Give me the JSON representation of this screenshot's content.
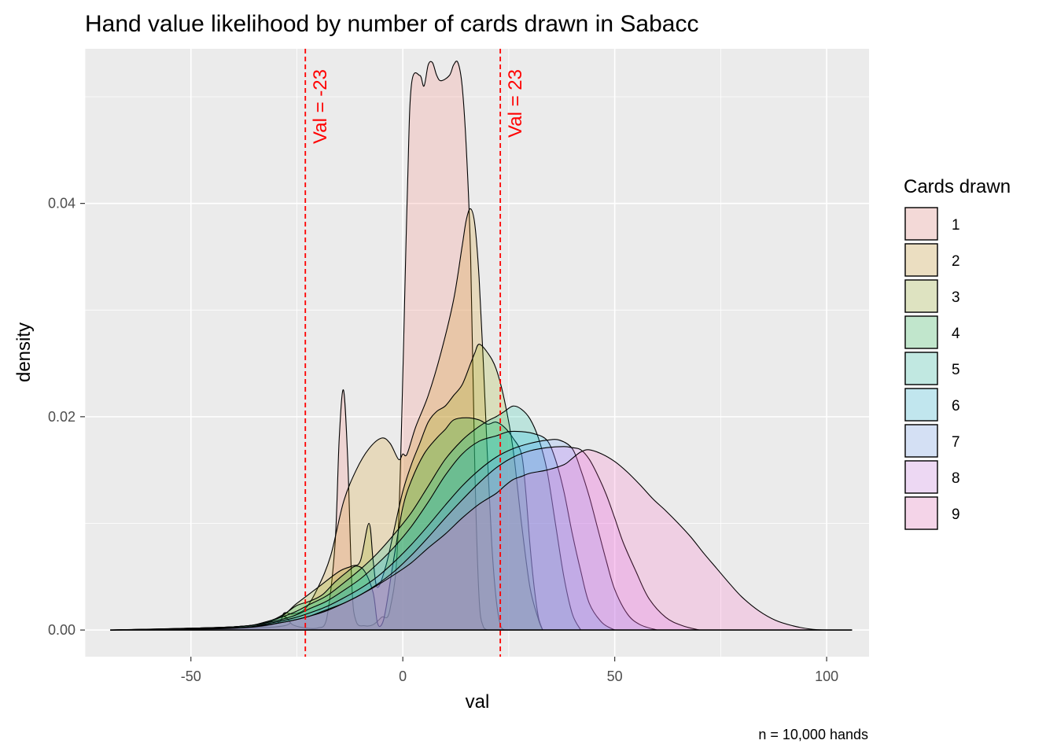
{
  "chart_data": {
    "type": "area",
    "title": "Hand value likelihood by number of cards drawn in Sabacc",
    "xlabel": "val",
    "ylabel": "density",
    "caption": "n = 10,000 hands",
    "xlim": [
      -75,
      110
    ],
    "ylim": [
      -0.0025,
      0.0545
    ],
    "x_ticks": [
      -50,
      0,
      50,
      100
    ],
    "x_tick_labels": [
      "-50",
      "0",
      "50",
      "100"
    ],
    "y_ticks": [
      0.0,
      0.02,
      0.04
    ],
    "y_tick_labels": [
      "0.00",
      "0.02",
      "0.04"
    ],
    "grid": true,
    "legend": {
      "title": "Cards drawn",
      "position": "right",
      "entries": [
        "1",
        "2",
        "3",
        "4",
        "5",
        "6",
        "7",
        "8",
        "9"
      ]
    },
    "fill_alpha": 0.2,
    "reference_lines": [
      {
        "x": -23,
        "label": "Val = -23",
        "color": "#ff0000",
        "style": "dashed"
      },
      {
        "x": 23,
        "label": "Val = 23",
        "color": "#ff0000",
        "style": "dashed"
      }
    ],
    "series": [
      {
        "name": "1",
        "color": "#F8766D",
        "points": [
          [
            -69,
            0
          ],
          [
            -30,
            0.0003
          ],
          [
            -28,
            0.0013
          ],
          [
            -26,
            0.0005
          ],
          [
            -23,
            0.0002
          ],
          [
            -20,
            0.0002
          ],
          [
            -18,
            0.001
          ],
          [
            -16,
            0.008
          ],
          [
            -15,
            0.018
          ],
          [
            -14,
            0.0225
          ],
          [
            -13,
            0.016
          ],
          [
            -12,
            0.004
          ],
          [
            -11,
            0.0008
          ],
          [
            -9,
            0.0004
          ],
          [
            -7,
            0.0005
          ],
          [
            -5,
            0.0012
          ],
          [
            -3,
            0.002
          ],
          [
            -1,
            0.01
          ],
          [
            1,
            0.04
          ],
          [
            2,
            0.051
          ],
          [
            4,
            0.052
          ],
          [
            5,
            0.051
          ],
          [
            6,
            0.053
          ],
          [
            7,
            0.0532
          ],
          [
            8,
            0.052
          ],
          [
            9,
            0.0515
          ],
          [
            11,
            0.052
          ],
          [
            12,
            0.053
          ],
          [
            13,
            0.0532
          ],
          [
            14,
            0.051
          ],
          [
            15,
            0.045
          ],
          [
            16,
            0.035
          ],
          [
            17,
            0.015
          ],
          [
            18,
            0.003
          ],
          [
            19,
            0.0003
          ],
          [
            20,
            0
          ]
        ]
      },
      {
        "name": "2",
        "color": "#D39200",
        "points": [
          [
            -69,
            0
          ],
          [
            -40,
            0.0002
          ],
          [
            -30,
            0.0006
          ],
          [
            -28,
            0.0016
          ],
          [
            -26,
            0.0015
          ],
          [
            -23,
            0.002
          ],
          [
            -20,
            0.004
          ],
          [
            -17,
            0.007
          ],
          [
            -14,
            0.012
          ],
          [
            -11,
            0.015
          ],
          [
            -8,
            0.017
          ],
          [
            -5,
            0.018
          ],
          [
            -3,
            0.0175
          ],
          [
            -1,
            0.016
          ],
          [
            0,
            0.0165
          ],
          [
            1,
            0.0165
          ],
          [
            3,
            0.019
          ],
          [
            6,
            0.022
          ],
          [
            9,
            0.026
          ],
          [
            12,
            0.031
          ],
          [
            14,
            0.036
          ],
          [
            15,
            0.0385
          ],
          [
            16,
            0.0395
          ],
          [
            17,
            0.038
          ],
          [
            18,
            0.033
          ],
          [
            19,
            0.025
          ],
          [
            20,
            0.016
          ],
          [
            21,
            0.008
          ],
          [
            22,
            0.003
          ],
          [
            23,
            0.0005
          ],
          [
            24,
            0
          ]
        ]
      },
      {
        "name": "3",
        "color": "#93AA00",
        "points": [
          [
            -69,
            0
          ],
          [
            -40,
            0.0003
          ],
          [
            -30,
            0.001
          ],
          [
            -25,
            0.0025
          ],
          [
            -20,
            0.004
          ],
          [
            -15,
            0.0055
          ],
          [
            -12,
            0.006
          ],
          [
            -10,
            0.0065
          ],
          [
            -8,
            0.01
          ],
          [
            -7,
            0.0065
          ],
          [
            -6,
            0.004
          ],
          [
            -4,
            0.006
          ],
          [
            -2,
            0.0095
          ],
          [
            0,
            0.013
          ],
          [
            2,
            0.0155
          ],
          [
            4,
            0.0175
          ],
          [
            6,
            0.0195
          ],
          [
            8,
            0.0205
          ],
          [
            10,
            0.021
          ],
          [
            12,
            0.022
          ],
          [
            14,
            0.023
          ],
          [
            16,
            0.025
          ],
          [
            17,
            0.026
          ],
          [
            18,
            0.0268
          ],
          [
            20,
            0.026
          ],
          [
            22,
            0.0245
          ],
          [
            24,
            0.0215
          ],
          [
            26,
            0.017
          ],
          [
            28,
            0.01
          ],
          [
            30,
            0.004
          ],
          [
            32,
            0.001
          ],
          [
            33,
            0
          ]
        ]
      },
      {
        "name": "4",
        "color": "#00BA38",
        "points": [
          [
            -69,
            0
          ],
          [
            -40,
            0.0003
          ],
          [
            -32,
            0.0008
          ],
          [
            -28,
            0.0015
          ],
          [
            -25,
            0.0023
          ],
          [
            -22,
            0.0027
          ],
          [
            -19,
            0.0033
          ],
          [
            -16,
            0.0045
          ],
          [
            -13,
            0.0055
          ],
          [
            -11,
            0.006
          ],
          [
            -9,
            0.0055
          ],
          [
            -7,
            0.0035
          ],
          [
            -6,
            0.0007
          ],
          [
            -5,
            0.0005
          ],
          [
            -4,
            0.002
          ],
          [
            -2,
            0.007
          ],
          [
            0,
            0.0115
          ],
          [
            2,
            0.014
          ],
          [
            5,
            0.0165
          ],
          [
            8,
            0.018
          ],
          [
            10,
            0.0188
          ],
          [
            12,
            0.0197
          ],
          [
            15,
            0.0199
          ],
          [
            18,
            0.0197
          ],
          [
            20,
            0.0193
          ],
          [
            22,
            0.0195
          ],
          [
            24,
            0.019
          ],
          [
            26,
            0.018
          ],
          [
            28,
            0.0165
          ],
          [
            29,
            0.013
          ],
          [
            30,
            0.008
          ],
          [
            31,
            0.004
          ],
          [
            32,
            0.0012
          ],
          [
            33,
            0
          ]
        ]
      },
      {
        "name": "5",
        "color": "#00C19F",
        "points": [
          [
            -69,
            0
          ],
          [
            -40,
            0.0003
          ],
          [
            -32,
            0.0008
          ],
          [
            -26,
            0.0016
          ],
          [
            -22,
            0.0024
          ],
          [
            -18,
            0.0032
          ],
          [
            -14,
            0.0044
          ],
          [
            -10,
            0.0057
          ],
          [
            -6,
            0.0072
          ],
          [
            -2,
            0.009
          ],
          [
            2,
            0.011
          ],
          [
            6,
            0.0135
          ],
          [
            10,
            0.016
          ],
          [
            14,
            0.0178
          ],
          [
            17,
            0.0188
          ],
          [
            20,
            0.0196
          ],
          [
            22,
            0.02
          ],
          [
            24,
            0.0205
          ],
          [
            26,
            0.021
          ],
          [
            28,
            0.0207
          ],
          [
            30,
            0.0198
          ],
          [
            32,
            0.018
          ],
          [
            34,
            0.015
          ],
          [
            36,
            0.01
          ],
          [
            38,
            0.005
          ],
          [
            40,
            0.0015
          ],
          [
            42,
            0
          ]
        ]
      },
      {
        "name": "6",
        "color": "#00B9E3",
        "points": [
          [
            -69,
            0
          ],
          [
            -40,
            0.0003
          ],
          [
            -32,
            0.0007
          ],
          [
            -26,
            0.0013
          ],
          [
            -22,
            0.002
          ],
          [
            -18,
            0.0027
          ],
          [
            -14,
            0.0037
          ],
          [
            -10,
            0.0048
          ],
          [
            -6,
            0.0062
          ],
          [
            -2,
            0.0078
          ],
          [
            2,
            0.0097
          ],
          [
            6,
            0.012
          ],
          [
            10,
            0.0145
          ],
          [
            14,
            0.0165
          ],
          [
            18,
            0.0177
          ],
          [
            22,
            0.0182
          ],
          [
            25,
            0.0186
          ],
          [
            28,
            0.0186
          ],
          [
            31,
            0.0184
          ],
          [
            34,
            0.0178
          ],
          [
            36,
            0.016
          ],
          [
            38,
            0.013
          ],
          [
            40,
            0.009
          ],
          [
            42,
            0.0055
          ],
          [
            44,
            0.0025
          ],
          [
            47,
            0.0007
          ],
          [
            50,
            0
          ]
        ]
      },
      {
        "name": "7",
        "color": "#619CFF",
        "points": [
          [
            -69,
            0
          ],
          [
            -40,
            0.0002
          ],
          [
            -32,
            0.0006
          ],
          [
            -26,
            0.0011
          ],
          [
            -22,
            0.0016
          ],
          [
            -18,
            0.0022
          ],
          [
            -14,
            0.003
          ],
          [
            -10,
            0.0039
          ],
          [
            -6,
            0.005
          ],
          [
            -2,
            0.0064
          ],
          [
            2,
            0.008
          ],
          [
            6,
            0.0098
          ],
          [
            10,
            0.0117
          ],
          [
            14,
            0.0135
          ],
          [
            18,
            0.015
          ],
          [
            22,
            0.0162
          ],
          [
            26,
            0.017
          ],
          [
            30,
            0.0175
          ],
          [
            34,
            0.0178
          ],
          [
            37,
            0.0178
          ],
          [
            40,
            0.017
          ],
          [
            42,
            0.015
          ],
          [
            44,
            0.0125
          ],
          [
            46,
            0.0095
          ],
          [
            48,
            0.0065
          ],
          [
            50,
            0.0038
          ],
          [
            53,
            0.0015
          ],
          [
            56,
            0.0005
          ],
          [
            60,
            0
          ]
        ]
      },
      {
        "name": "8",
        "color": "#DB72FB",
        "points": [
          [
            -69,
            0
          ],
          [
            -40,
            0.0002
          ],
          [
            -32,
            0.0005
          ],
          [
            -26,
            0.0009
          ],
          [
            -22,
            0.0013
          ],
          [
            -18,
            0.0019
          ],
          [
            -14,
            0.0025
          ],
          [
            -10,
            0.0033
          ],
          [
            -6,
            0.0043
          ],
          [
            -2,
            0.0055
          ],
          [
            2,
            0.007
          ],
          [
            6,
            0.0087
          ],
          [
            10,
            0.0105
          ],
          [
            14,
            0.0122
          ],
          [
            18,
            0.0138
          ],
          [
            22,
            0.0152
          ],
          [
            26,
            0.0162
          ],
          [
            30,
            0.0168
          ],
          [
            34,
            0.0171
          ],
          [
            38,
            0.0172
          ],
          [
            40,
            0.0171
          ],
          [
            42,
            0.0169
          ],
          [
            44,
            0.016
          ],
          [
            46,
            0.0145
          ],
          [
            48,
            0.0127
          ],
          [
            50,
            0.0105
          ],
          [
            52,
            0.0082
          ],
          [
            55,
            0.0055
          ],
          [
            58,
            0.003
          ],
          [
            62,
            0.0012
          ],
          [
            66,
            0.0004
          ],
          [
            70,
            0
          ]
        ]
      },
      {
        "name": "9",
        "color": "#FF61C3",
        "points": [
          [
            -69,
            0
          ],
          [
            -45,
            0.0001
          ],
          [
            -35,
            0.0003
          ],
          [
            -30,
            0.0006
          ],
          [
            -26,
            0.0009
          ],
          [
            -22,
            0.0013
          ],
          [
            -18,
            0.0018
          ],
          [
            -14,
            0.0025
          ],
          [
            -10,
            0.0033
          ],
          [
            -6,
            0.0042
          ],
          [
            -2,
            0.0052
          ],
          [
            2,
            0.0063
          ],
          [
            6,
            0.0077
          ],
          [
            10,
            0.009
          ],
          [
            14,
            0.0105
          ],
          [
            18,
            0.0118
          ],
          [
            22,
            0.0128
          ],
          [
            24,
            0.0135
          ],
          [
            26,
            0.0141
          ],
          [
            28,
            0.0144
          ],
          [
            30,
            0.0147
          ],
          [
            34,
            0.015
          ],
          [
            38,
            0.0155
          ],
          [
            40,
            0.0161
          ],
          [
            42,
            0.0167
          ],
          [
            44,
            0.0169
          ],
          [
            47,
            0.0165
          ],
          [
            50,
            0.0158
          ],
          [
            53,
            0.0148
          ],
          [
            56,
            0.0136
          ],
          [
            59,
            0.0123
          ],
          [
            62,
            0.0112
          ],
          [
            65,
            0.01
          ],
          [
            68,
            0.0087
          ],
          [
            71,
            0.0072
          ],
          [
            74,
            0.0058
          ],
          [
            77,
            0.0044
          ],
          [
            80,
            0.0031
          ],
          [
            84,
            0.0018
          ],
          [
            88,
            0.0009
          ],
          [
            92,
            0.0004
          ],
          [
            96,
            0.0001
          ],
          [
            100,
            0
          ],
          [
            106,
            0
          ]
        ]
      }
    ]
  }
}
